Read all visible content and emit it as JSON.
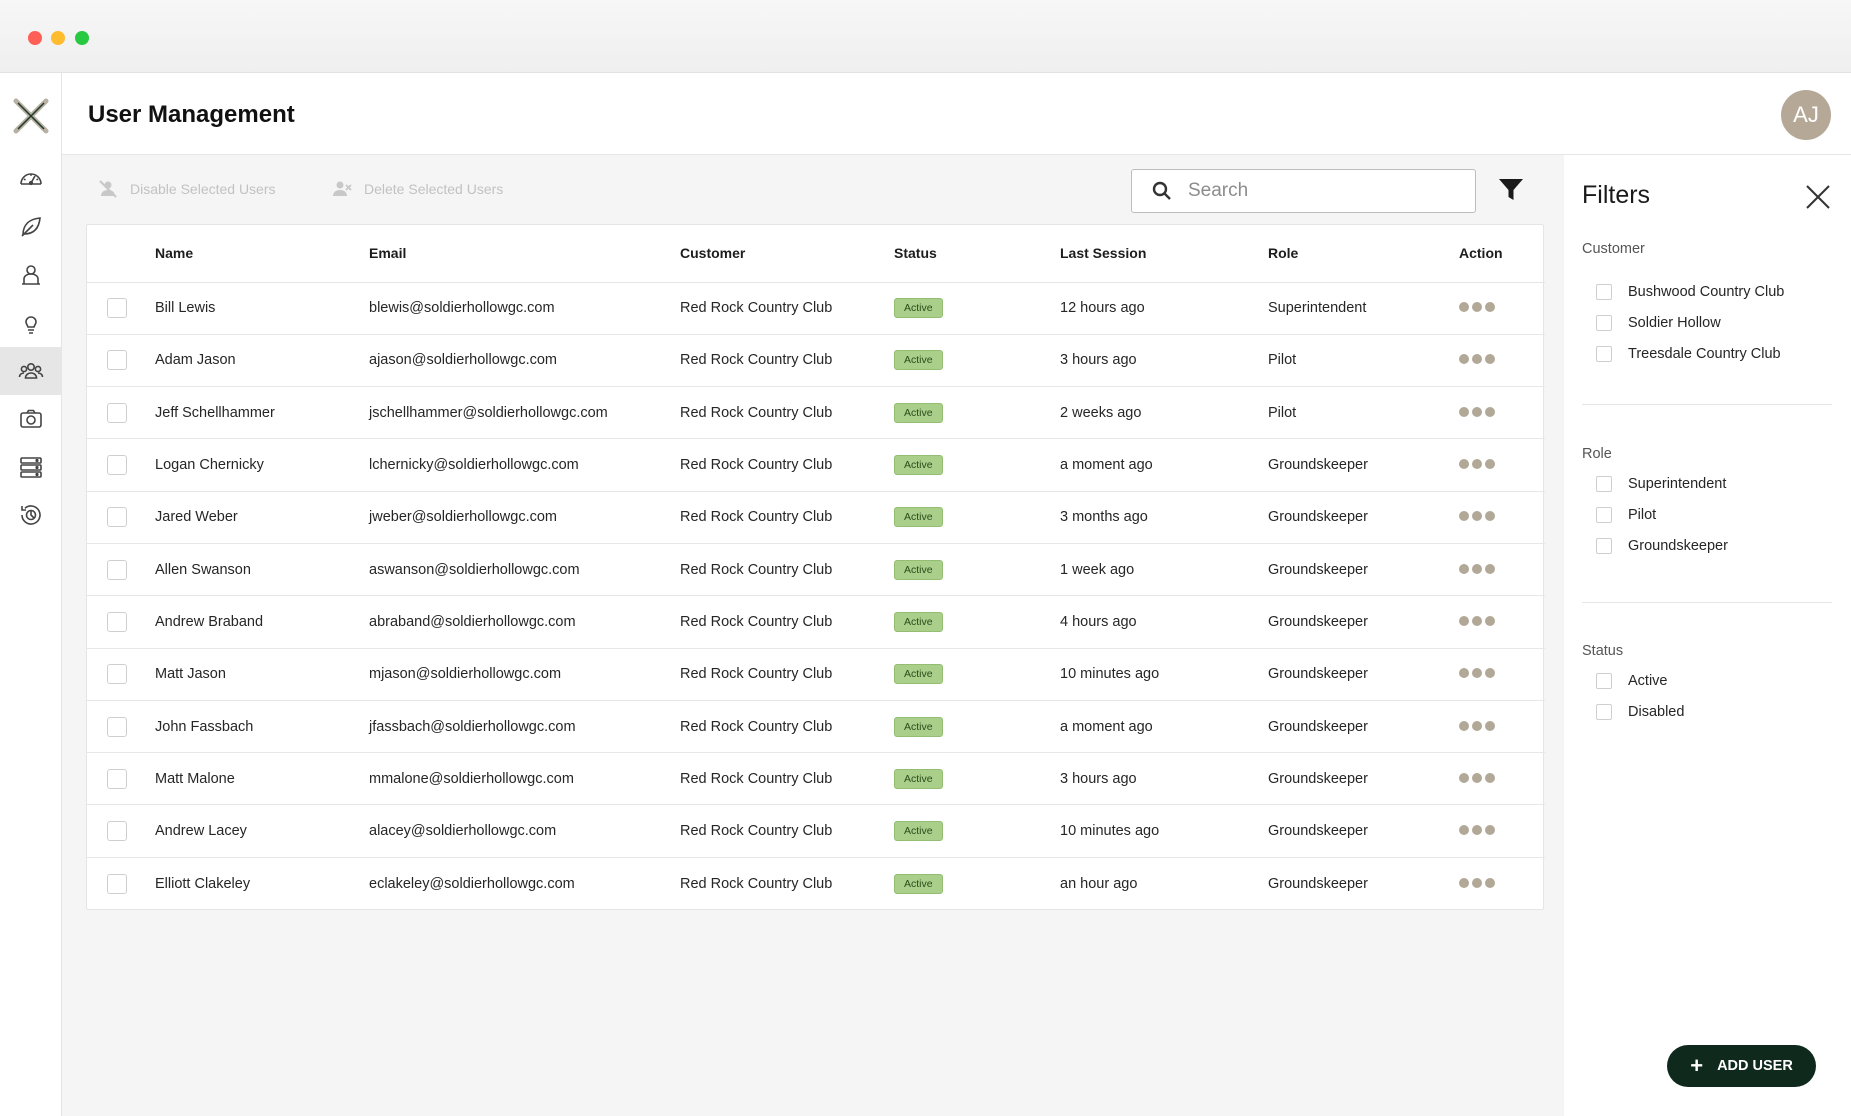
{
  "window": {
    "title": "User Management"
  },
  "header": {
    "title": "User Management",
    "avatar_initials": "AJ"
  },
  "sidebar": {
    "items": [
      {
        "name": "dashboard-icon"
      },
      {
        "name": "leaf-icon"
      },
      {
        "name": "person-pin-icon"
      },
      {
        "name": "lightbulb-icon"
      },
      {
        "name": "users-icon",
        "active": true
      },
      {
        "name": "camera-icon"
      },
      {
        "name": "server-icon"
      },
      {
        "name": "history-icon"
      }
    ]
  },
  "toolbar": {
    "disable_label": "Disable Selected Users",
    "delete_label": "Delete Selected Users",
    "search_placeholder": "Search"
  },
  "table": {
    "columns": [
      "Name",
      "Email",
      "Customer",
      "Status",
      "Last Session",
      "Role",
      "Action"
    ],
    "rows": [
      {
        "name": "Bill Lewis",
        "email": "blewis@soldierhollowgc.com",
        "customer": "Red Rock Country Club",
        "status": "Active",
        "last_session": "12 hours ago",
        "role": "Superintendent"
      },
      {
        "name": "Adam Jason",
        "email": "ajason@soldierhollowgc.com",
        "customer": "Red Rock Country Club",
        "status": "Active",
        "last_session": "3 hours ago",
        "role": "Pilot"
      },
      {
        "name": "Jeff Schellhammer",
        "email": "jschellhammer@soldierhollowgc.com",
        "customer": "Red Rock Country Club",
        "status": "Active",
        "last_session": "2 weeks ago",
        "role": "Pilot"
      },
      {
        "name": "Logan Chernicky",
        "email": "lchernicky@soldierhollowgc.com",
        "customer": "Red Rock Country Club",
        "status": "Active",
        "last_session": "a moment ago",
        "role": "Groundskeeper"
      },
      {
        "name": "Jared Weber",
        "email": "jweber@soldierhollowgc.com",
        "customer": "Red Rock Country Club",
        "status": "Active",
        "last_session": "3 months ago",
        "role": "Groundskeeper"
      },
      {
        "name": "Allen Swanson",
        "email": "aswanson@soldierhollowgc.com",
        "customer": "Red Rock Country Club",
        "status": "Active",
        "last_session": "1 week ago",
        "role": "Groundskeeper"
      },
      {
        "name": "Andrew Braband",
        "email": "abraband@soldierhollowgc.com",
        "customer": "Red Rock Country Club",
        "status": "Active",
        "last_session": "4 hours ago",
        "role": "Groundskeeper"
      },
      {
        "name": "Matt Jason",
        "email": "mjason@soldierhollowgc.com",
        "customer": "Red Rock Country Club",
        "status": "Active",
        "last_session": "10 minutes ago",
        "role": "Groundskeeper"
      },
      {
        "name": "John Fassbach",
        "email": "jfassbach@soldierhollowgc.com",
        "customer": "Red Rock Country Club",
        "status": "Active",
        "last_session": "a moment ago",
        "role": "Groundskeeper"
      },
      {
        "name": "Matt Malone",
        "email": "mmalone@soldierhollowgc.com",
        "customer": "Red Rock Country Club",
        "status": "Active",
        "last_session": "3 hours ago",
        "role": "Groundskeeper"
      },
      {
        "name": "Andrew Lacey",
        "email": "alacey@soldierhollowgc.com",
        "customer": "Red Rock Country Club",
        "status": "Active",
        "last_session": "10 minutes ago",
        "role": "Groundskeeper"
      },
      {
        "name": "Elliott Clakeley",
        "email": "eclakeley@soldierhollowgc.com",
        "customer": "Red Rock Country Club",
        "status": "Active",
        "last_session": "an hour ago",
        "role": "Groundskeeper"
      }
    ]
  },
  "filters": {
    "title": "Filters",
    "sections": [
      {
        "label": "Customer",
        "options": [
          "Bushwood Country Club",
          "Soldier Hollow",
          "Treesdale Country Club"
        ]
      },
      {
        "label": "Role",
        "options": [
          "Superintendent",
          "Pilot",
          "Groundskeeper"
        ]
      },
      {
        "label": "Status",
        "options": [
          "Active",
          "Disabled"
        ]
      }
    ]
  },
  "add_user": {
    "label": "ADD USER"
  },
  "colors": {
    "accent_dark": "#0f2a1d",
    "badge_green": "#a9cf8b",
    "avatar": "#b5a897",
    "action_dots": "#b2a898"
  }
}
